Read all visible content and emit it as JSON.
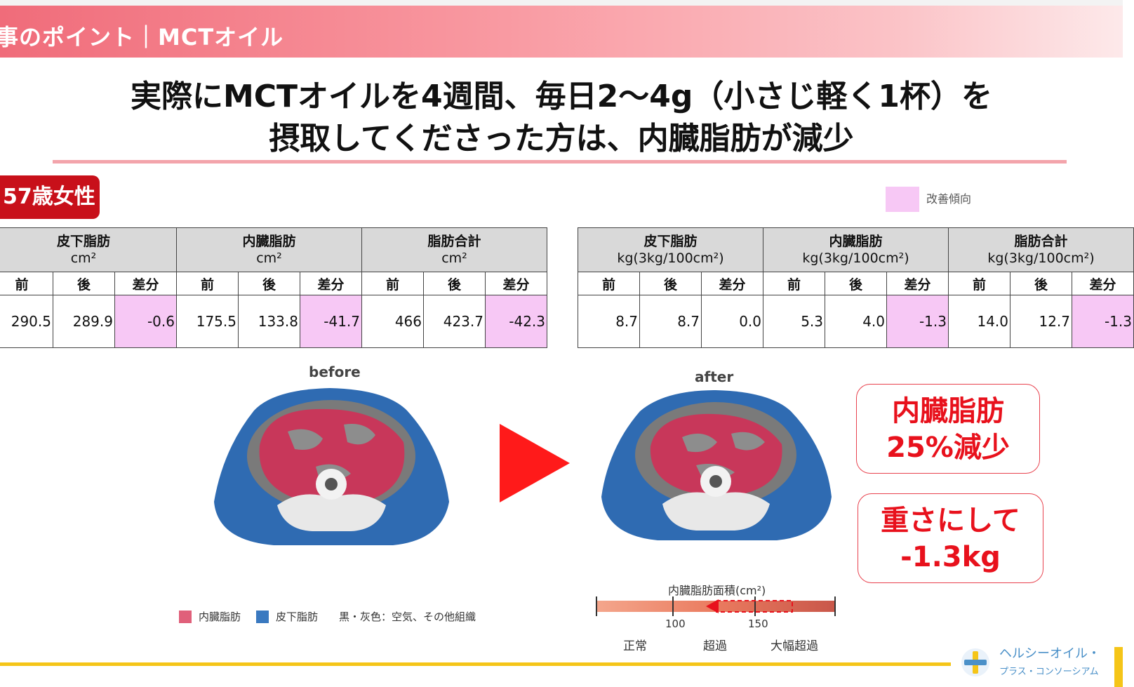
{
  "header": {
    "title": "事のポイント｜MCTオイル"
  },
  "headline": {
    "line1": "実際にMCTオイルを4週間、毎日2～4g（小さじ軽く1杯）を",
    "line2": "摂取してくださった方は、内臓脂肪が減少"
  },
  "badge": "57歳女性",
  "legend": {
    "label": "改善傾向",
    "color": "#f7c8f5"
  },
  "table_area": {
    "groups": [
      {
        "name": "皮下脂肪",
        "unit": "cm²"
      },
      {
        "name": "内臓脂肪",
        "unit": "cm²"
      },
      {
        "name": "脂肪合計",
        "unit": "cm²"
      }
    ],
    "subheaders": [
      "前",
      "後",
      "差分"
    ],
    "values": [
      "290.5",
      "289.9",
      "-0.6",
      "175.5",
      "133.8",
      "-41.7",
      "466",
      "423.7",
      "-42.3"
    ]
  },
  "table_weight": {
    "groups": [
      {
        "name": "皮下脂肪",
        "unit": "kg(3kg/100cm²)"
      },
      {
        "name": "内臓脂肪",
        "unit": "kg(3kg/100cm²)"
      },
      {
        "name": "脂肪合計",
        "unit": "kg(3kg/100cm²)"
      }
    ],
    "subheaders": [
      "前",
      "後",
      "差分"
    ],
    "values": [
      "8.7",
      "8.7",
      "0.0",
      "5.3",
      "4.0",
      "-1.3",
      "14.0",
      "12.7",
      "-1.3"
    ]
  },
  "ct": {
    "before_label": "before",
    "after_label": "after",
    "legend_visceral": "内臓脂肪",
    "legend_subcutaneous": "皮下脂肪",
    "legend_other": "黒・灰色：空気、その他組織",
    "scale_title": "内臓脂肪面積(cm²)",
    "scale_ticks": [
      "100",
      "150"
    ],
    "scale_zones": [
      "正常",
      "超過",
      "大幅超過"
    ]
  },
  "callouts": {
    "c1_line1": "内臓脂肪",
    "c1_line2": "25%減少",
    "c2_line1": "重さにして",
    "c2_line2": "-1.3kg"
  },
  "logo": {
    "line1": "ヘルシーオイル・",
    "line2": "プラス・コンソーシアム"
  },
  "colors": {
    "accent_red": "#e8111c",
    "header_pink": "#f06c7a",
    "highlight": "#f7c8f5",
    "visceral": "#c8375a",
    "subcutaneous": "#2f6bb2",
    "bottom_rule": "#f5c518"
  }
}
